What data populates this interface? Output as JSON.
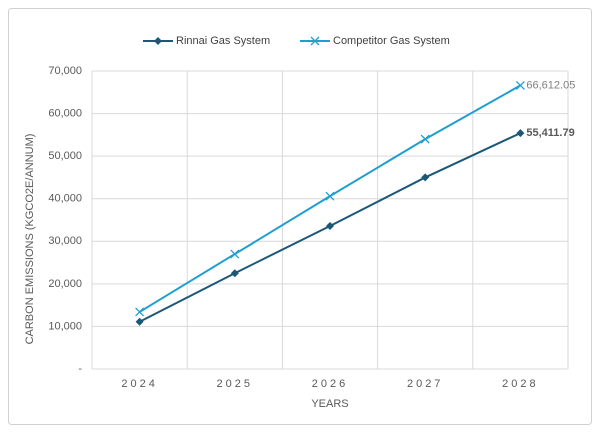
{
  "chart_data": {
    "type": "line",
    "x_label": "YEARS",
    "y_label": "CARBON EMISSIONS (KGCO2E/ANNUM)",
    "categories": [
      "2024",
      "2025",
      "2026",
      "2027",
      "2028"
    ],
    "series": [
      {
        "name": "Rinnai Gas System",
        "color": "#1b5878",
        "marker": "diamond",
        "values": [
          11100,
          22500,
          33600,
          45000,
          55411.79
        ],
        "value_labels": [
          null,
          null,
          null,
          null,
          "55,411.79"
        ]
      },
      {
        "name": "Competitor Gas System",
        "color": "#1e9fd0",
        "marker": "x",
        "values": [
          13400,
          27000,
          40600,
          54000,
          66612.05
        ],
        "value_labels": [
          null,
          null,
          null,
          null,
          "66,612.05"
        ]
      }
    ],
    "ylim": [
      0,
      70000
    ],
    "yticks": [
      {
        "value": 0,
        "label": "-"
      },
      {
        "value": 10000,
        "label": "10,000"
      },
      {
        "value": 20000,
        "label": "20,000"
      },
      {
        "value": 30000,
        "label": "30,000"
      },
      {
        "value": 40000,
        "label": "40,000"
      },
      {
        "value": 50000,
        "label": "50,000"
      },
      {
        "value": 60000,
        "label": "60,000"
      },
      {
        "value": 70000,
        "label": "70,000"
      }
    ],
    "grid": true,
    "legend": "top"
  }
}
